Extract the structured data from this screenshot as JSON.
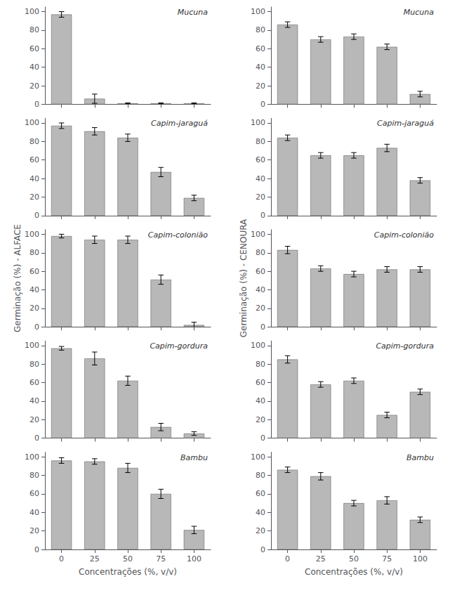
{
  "chart_data": [
    {
      "type": "bar",
      "annotation": "Mucuna",
      "categories": [
        "0",
        "25",
        "50",
        "75",
        "100"
      ],
      "values": [
        97,
        6,
        1,
        1,
        1
      ],
      "errors": [
        3,
        5,
        0.5,
        0.5,
        0.5
      ],
      "color": "#b8b8b8",
      "ylim": [
        0,
        105
      ],
      "yticks": [
        0,
        20,
        40,
        60,
        80,
        100
      ],
      "grid": false,
      "tick_labels": "y"
    },
    {
      "type": "bar",
      "annotation": "Mucuna",
      "categories": [
        "0",
        "25",
        "50",
        "75",
        "100"
      ],
      "values": [
        86,
        70,
        73,
        62,
        11
      ],
      "errors": [
        3,
        3,
        3,
        3,
        3
      ],
      "color": "#b8b8b8",
      "ylim": [
        0,
        105
      ],
      "yticks": [
        0,
        20,
        40,
        60,
        80,
        100
      ],
      "grid": false,
      "tick_labels": "y"
    },
    {
      "type": "bar",
      "annotation": "Capim-jaraguá",
      "categories": [
        "0",
        "25",
        "50",
        "75",
        "100"
      ],
      "values": [
        97,
        91,
        84,
        47,
        19
      ],
      "errors": [
        3,
        4,
        4,
        5,
        3
      ],
      "color": "#b8b8b8",
      "ylim": [
        0,
        105
      ],
      "yticks": [
        0,
        20,
        40,
        60,
        80,
        100
      ],
      "grid": false,
      "tick_labels": "y"
    },
    {
      "type": "bar",
      "annotation": "Capim-jaraguá",
      "categories": [
        "0",
        "25",
        "50",
        "75",
        "100"
      ],
      "values": [
        84,
        65,
        65,
        73,
        38
      ],
      "errors": [
        3,
        3,
        3,
        4,
        3
      ],
      "color": "#b8b8b8",
      "ylim": [
        0,
        105
      ],
      "yticks": [
        0,
        20,
        40,
        60,
        80,
        100
      ],
      "grid": false,
      "tick_labels": "y"
    },
    {
      "type": "bar",
      "annotation": "Capim-colonião",
      "ylabel": "Germinação (%) - ALFACE",
      "categories": [
        "0",
        "25",
        "50",
        "75",
        "100"
      ],
      "values": [
        98,
        94,
        94,
        51,
        2
      ],
      "errors": [
        2,
        4,
        4,
        5,
        3
      ],
      "color": "#b8b8b8",
      "ylim": [
        0,
        105
      ],
      "yticks": [
        0,
        20,
        40,
        60,
        80,
        100
      ],
      "grid": false,
      "tick_labels": "y"
    },
    {
      "type": "bar",
      "annotation": "Capim-colonião",
      "ylabel": "Germinação (%) - CENOURA",
      "categories": [
        "0",
        "25",
        "50",
        "75",
        "100"
      ],
      "values": [
        83,
        63,
        57,
        62,
        62
      ],
      "errors": [
        4,
        3,
        3,
        3,
        3
      ],
      "color": "#b8b8b8",
      "ylim": [
        0,
        105
      ],
      "yticks": [
        0,
        20,
        40,
        60,
        80,
        100
      ],
      "grid": false,
      "tick_labels": "y"
    },
    {
      "type": "bar",
      "annotation": "Capim-gordura",
      "categories": [
        "0",
        "25",
        "50",
        "75",
        "100"
      ],
      "values": [
        97,
        86,
        62,
        12,
        5
      ],
      "errors": [
        2,
        7,
        5,
        4,
        2
      ],
      "color": "#b8b8b8",
      "ylim": [
        0,
        105
      ],
      "yticks": [
        0,
        20,
        40,
        60,
        80,
        100
      ],
      "grid": false,
      "tick_labels": "y"
    },
    {
      "type": "bar",
      "annotation": "Capim-gordura",
      "categories": [
        "0",
        "25",
        "50",
        "75",
        "100"
      ],
      "values": [
        85,
        58,
        62,
        25,
        50
      ],
      "errors": [
        4,
        3,
        3,
        3,
        3
      ],
      "color": "#b8b8b8",
      "ylim": [
        0,
        105
      ],
      "yticks": [
        0,
        20,
        40,
        60,
        80,
        100
      ],
      "grid": false,
      "tick_labels": "y"
    },
    {
      "type": "bar",
      "annotation": "Bambu",
      "xlabel": "Concentrações (%, v/v)",
      "categories": [
        "0",
        "25",
        "50",
        "75",
        "100"
      ],
      "values": [
        96,
        95,
        88,
        60,
        21
      ],
      "errors": [
        3,
        3,
        5,
        5,
        4
      ],
      "color": "#b8b8b8",
      "ylim": [
        0,
        105
      ],
      "yticks": [
        0,
        20,
        40,
        60,
        80,
        100
      ],
      "grid": false
    },
    {
      "type": "bar",
      "annotation": "Bambu",
      "xlabel": "Concentrações (%, v/v)",
      "categories": [
        "0",
        "25",
        "50",
        "75",
        "100"
      ],
      "values": [
        86,
        79,
        50,
        53,
        32
      ],
      "errors": [
        3,
        4,
        3,
        4,
        3
      ],
      "color": "#b8b8b8",
      "ylim": [
        0,
        105
      ],
      "yticks": [
        0,
        20,
        40,
        60,
        80,
        100
      ],
      "grid": false
    }
  ]
}
